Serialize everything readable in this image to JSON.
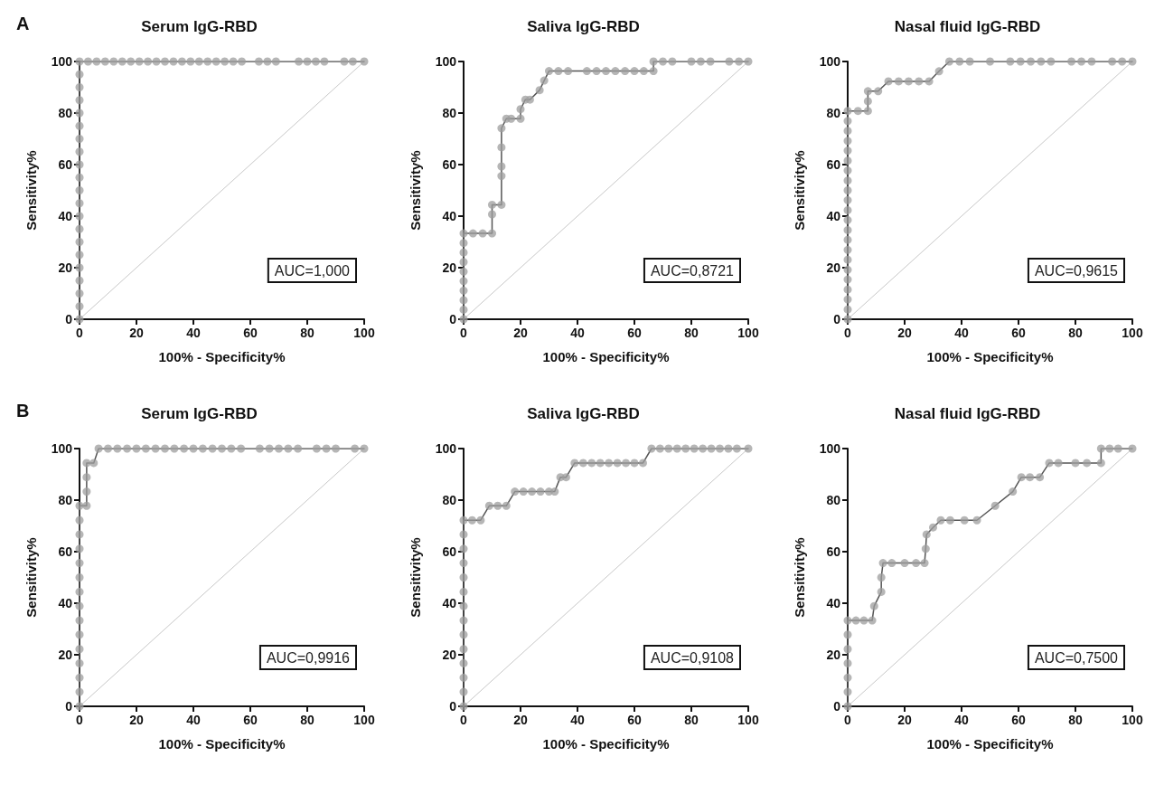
{
  "chart_data": [
    {
      "type": "line",
      "title": "Serum IgG-RBD",
      "subtitle": "A",
      "xlabel": "100% - Specificity%",
      "ylabel": "Sensitivity%",
      "xlim": [
        0,
        100
      ],
      "ylim": [
        0,
        100
      ],
      "xticks": [
        0,
        20,
        40,
        60,
        80,
        100
      ],
      "yticks": [
        0,
        20,
        40,
        60,
        80,
        100
      ],
      "marker": "circle",
      "annotations": [
        "AUC=1,000"
      ],
      "series": [
        {
          "color": "#9e9e9e",
          "x": [
            0,
            0,
            0,
            0,
            0,
            0,
            0,
            0,
            0,
            0,
            0,
            0,
            0,
            0,
            0,
            0,
            0,
            0,
            0,
            0,
            0,
            3,
            6,
            9,
            12,
            15,
            18,
            21,
            24,
            27,
            30,
            33,
            36,
            39,
            42,
            45,
            48,
            51,
            54,
            57,
            63,
            66,
            69,
            77,
            80,
            83,
            86,
            93,
            96,
            100
          ],
          "values": [
            0,
            5,
            10,
            15,
            20,
            25,
            30,
            35,
            40,
            45,
            50,
            55,
            60,
            65,
            70,
            75,
            80,
            85,
            90,
            95,
            100,
            100,
            100,
            100,
            100,
            100,
            100,
            100,
            100,
            100,
            100,
            100,
            100,
            100,
            100,
            100,
            100,
            100,
            100,
            100,
            100,
            100,
            100,
            100,
            100,
            100,
            100,
            100,
            100,
            100
          ]
        },
        {
          "type": "line",
          "marker": "none",
          "color": "#c8c8c8",
          "x": [
            0,
            100
          ],
          "values": [
            0,
            100
          ]
        }
      ]
    },
    {
      "type": "line",
      "title": "Saliva IgG-RBD",
      "xlabel": "100% - Specificity%",
      "ylabel": "Sensitivity%",
      "xlim": [
        0,
        100
      ],
      "ylim": [
        0,
        100
      ],
      "xticks": [
        0,
        20,
        40,
        60,
        80,
        100
      ],
      "yticks": [
        0,
        20,
        40,
        60,
        80,
        100
      ],
      "marker": "circle",
      "annotations": [
        "AUC=0,8721"
      ],
      "series": [
        {
          "color": "#9e9e9e",
          "x": [
            0,
            0,
            0,
            0,
            0,
            0,
            0,
            0,
            0,
            0,
            3.3,
            6.7,
            10,
            10,
            10,
            13.3,
            13.3,
            13.3,
            13.3,
            13.3,
            15,
            16.7,
            20,
            20,
            21.7,
            23.3,
            26.7,
            28.3,
            30,
            33.3,
            36.7,
            43.3,
            46.7,
            50,
            53.3,
            56.7,
            60,
            63.3,
            66.7,
            66.7,
            70,
            73.3,
            80,
            83.3,
            86.7,
            93.3,
            96.7,
            100
          ],
          "values": [
            0,
            3.7,
            7.4,
            11.1,
            14.8,
            18.5,
            22.2,
            25.9,
            29.6,
            33.3,
            33.3,
            33.3,
            33.3,
            40.7,
            44.4,
            44.4,
            55.6,
            59.3,
            66.7,
            74.1,
            77.8,
            77.8,
            77.8,
            81.5,
            85.2,
            85.2,
            88.9,
            92.6,
            96.3,
            96.3,
            96.3,
            96.3,
            96.3,
            96.3,
            96.3,
            96.3,
            96.3,
            96.3,
            96.3,
            100,
            100,
            100,
            100,
            100,
            100,
            100,
            100,
            100
          ]
        },
        {
          "type": "line",
          "marker": "none",
          "color": "#c8c8c8",
          "x": [
            0,
            100
          ],
          "values": [
            0,
            100
          ]
        }
      ]
    },
    {
      "type": "line",
      "title": "Nasal fluid IgG-RBD",
      "xlabel": "100% - Specificity%",
      "ylabel": "Sensitivity%",
      "xlim": [
        0,
        100
      ],
      "ylim": [
        0,
        100
      ],
      "xticks": [
        0,
        20,
        40,
        60,
        80,
        100
      ],
      "yticks": [
        0,
        20,
        40,
        60,
        80,
        100
      ],
      "marker": "circle",
      "annotations": [
        "AUC=0,9615"
      ],
      "series": [
        {
          "color": "#9e9e9e",
          "x": [
            0,
            0,
            0,
            0,
            0,
            0,
            0,
            0,
            0,
            0,
            0,
            0,
            0,
            0,
            0,
            0,
            0,
            0,
            0,
            0,
            0,
            0,
            3.6,
            7.1,
            7.1,
            7.1,
            10.7,
            14.3,
            17.9,
            21.4,
            25,
            28.6,
            32.1,
            35.7,
            39.3,
            42.9,
            50,
            57.1,
            60.7,
            64.3,
            67.9,
            71.4,
            78.6,
            82.1,
            85.7,
            92.9,
            96.4,
            100
          ],
          "values": [
            0,
            3.8,
            7.7,
            11.5,
            15.4,
            19.2,
            23.1,
            26.9,
            30.8,
            34.6,
            38.5,
            42.3,
            46.2,
            50,
            53.8,
            57.7,
            61.5,
            65.4,
            69.2,
            73.1,
            76.9,
            80.8,
            80.8,
            80.8,
            84.6,
            88.5,
            88.5,
            92.3,
            92.3,
            92.3,
            92.3,
            92.3,
            96.2,
            100,
            100,
            100,
            100,
            100,
            100,
            100,
            100,
            100,
            100,
            100,
            100,
            100,
            100,
            100
          ]
        },
        {
          "type": "line",
          "marker": "none",
          "color": "#c8c8c8",
          "x": [
            0,
            100
          ],
          "values": [
            0,
            100
          ]
        }
      ]
    },
    {
      "type": "line",
      "title": "Serum IgG-RBD",
      "subtitle": "B",
      "xlabel": "100% - Specificity%",
      "ylabel": "Sensitivity%",
      "xlim": [
        0,
        100
      ],
      "ylim": [
        0,
        100
      ],
      "xticks": [
        0,
        20,
        40,
        60,
        80,
        100
      ],
      "yticks": [
        0,
        20,
        40,
        60,
        80,
        100
      ],
      "marker": "circle",
      "annotations": [
        "AUC=0,9916"
      ],
      "series": [
        {
          "color": "#9e9e9e",
          "x": [
            0,
            0,
            0,
            0,
            0,
            0,
            0,
            0,
            0,
            0,
            0,
            0,
            0,
            0,
            0,
            2.5,
            2.5,
            2.5,
            2.5,
            5,
            6.7,
            10,
            13.3,
            16.7,
            20,
            23.3,
            26.7,
            30,
            33.3,
            36.7,
            40,
            43.3,
            46.7,
            50,
            53.3,
            56.7,
            63.3,
            66.7,
            70,
            73.3,
            76.7,
            83.3,
            86.7,
            90,
            96.7,
            100
          ],
          "values": [
            0,
            5.6,
            11.1,
            16.7,
            22.2,
            27.8,
            33.3,
            38.9,
            44.4,
            50,
            55.6,
            61.1,
            66.7,
            72.2,
            77.8,
            77.8,
            83.3,
            88.9,
            94.4,
            94.4,
            100,
            100,
            100,
            100,
            100,
            100,
            100,
            100,
            100,
            100,
            100,
            100,
            100,
            100,
            100,
            100,
            100,
            100,
            100,
            100,
            100,
            100,
            100,
            100,
            100,
            100
          ]
        },
        {
          "type": "line",
          "marker": "none",
          "color": "#c8c8c8",
          "x": [
            0,
            100
          ],
          "values": [
            0,
            100
          ]
        }
      ]
    },
    {
      "type": "line",
      "title": "Saliva IgG-RBD",
      "xlabel": "100% - Specificity%",
      "ylabel": "Sensitivity%",
      "xlim": [
        0,
        100
      ],
      "ylim": [
        0,
        100
      ],
      "xticks": [
        0,
        20,
        40,
        60,
        80,
        100
      ],
      "yticks": [
        0,
        20,
        40,
        60,
        80,
        100
      ],
      "marker": "circle",
      "annotations": [
        "AUC=0,9108"
      ],
      "series": [
        {
          "color": "#9e9e9e",
          "x": [
            0,
            0,
            0,
            0,
            0,
            0,
            0,
            0,
            0,
            0,
            0,
            0,
            0,
            0,
            3,
            6,
            9,
            12,
            15,
            18,
            21,
            24,
            27,
            30,
            32,
            34,
            36,
            39,
            42,
            45,
            48,
            51,
            54,
            57,
            60,
            63,
            66,
            69,
            72,
            75,
            78,
            81,
            84,
            87,
            90,
            93,
            96,
            100
          ],
          "values": [
            0,
            5.6,
            11.1,
            16.7,
            22.2,
            27.8,
            33.3,
            38.9,
            44.4,
            50,
            55.6,
            61.1,
            66.7,
            72.2,
            72.2,
            72.2,
            77.8,
            77.8,
            77.8,
            83.3,
            83.3,
            83.3,
            83.3,
            83.3,
            83.3,
            88.9,
            88.9,
            94.4,
            94.4,
            94.4,
            94.4,
            94.4,
            94.4,
            94.4,
            94.4,
            94.4,
            100,
            100,
            100,
            100,
            100,
            100,
            100,
            100,
            100,
            100,
            100,
            100
          ]
        },
        {
          "type": "line",
          "marker": "none",
          "color": "#c8c8c8",
          "x": [
            0,
            100
          ],
          "values": [
            0,
            100
          ]
        }
      ]
    },
    {
      "type": "line",
      "title": "Nasal fluid IgG-RBD",
      "xlabel": "100% - Specificity%",
      "ylabel": "Sensitivity%",
      "xlim": [
        0,
        100
      ],
      "ylim": [
        0,
        100
      ],
      "xticks": [
        0,
        20,
        40,
        60,
        80,
        100
      ],
      "yticks": [
        0,
        20,
        40,
        60,
        80,
        100
      ],
      "marker": "circle",
      "annotations": [
        "AUC=0,7500"
      ],
      "series": [
        {
          "color": "#9e9e9e",
          "x": [
            0,
            0,
            0,
            0,
            0,
            0,
            0,
            2.9,
            5.7,
            8.6,
            9.3,
            11.8,
            11.8,
            12.4,
            15.5,
            20,
            24,
            27,
            27.4,
            27.7,
            30,
            32.7,
            36,
            41,
            45.4,
            51.8,
            58,
            61,
            64,
            67.5,
            70.8,
            74,
            80,
            84,
            89,
            89,
            92,
            95,
            100
          ],
          "values": [
            0,
            5.6,
            11.1,
            16.7,
            22.2,
            27.8,
            33.3,
            33.3,
            33.3,
            33.3,
            38.9,
            44.4,
            50,
            55.6,
            55.6,
            55.6,
            55.6,
            55.6,
            61.1,
            66.7,
            69.4,
            72.2,
            72.2,
            72.2,
            72.2,
            77.8,
            83.3,
            88.9,
            88.9,
            88.9,
            94.4,
            94.4,
            94.4,
            94.4,
            94.4,
            100,
            100,
            100,
            100
          ]
        },
        {
          "type": "line",
          "marker": "none",
          "color": "#c8c8c8",
          "x": [
            0,
            100
          ],
          "values": [
            0,
            100
          ]
        }
      ]
    }
  ]
}
